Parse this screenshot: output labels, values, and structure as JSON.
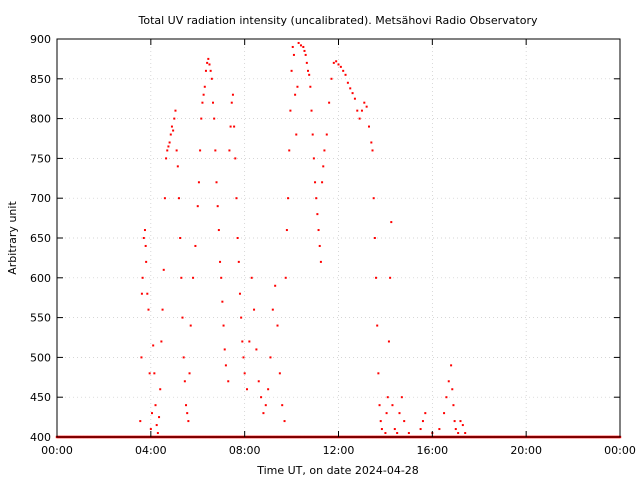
{
  "chart_data": {
    "type": "scatter",
    "title": "Total UV radiation intensity (uncalibrated). Metsähovi Radio Observatory",
    "xlabel": "Time UT, on date 2024-04-28",
    "ylabel": "Arbitrary unit",
    "xlim": [
      0,
      24
    ],
    "ylim": [
      400,
      900
    ],
    "grid": true,
    "marker_color": "#ff0000",
    "x_ticks": [
      {
        "value": 0,
        "label": "00:00"
      },
      {
        "value": 4,
        "label": "04:00"
      },
      {
        "value": 8,
        "label": "08:00"
      },
      {
        "value": 12,
        "label": "12:00"
      },
      {
        "value": 16,
        "label": "16:00"
      },
      {
        "value": 20,
        "label": "20:00"
      },
      {
        "value": 24,
        "label": "00:00"
      }
    ],
    "y_ticks": [
      400,
      450,
      500,
      550,
      600,
      650,
      700,
      750,
      800,
      850,
      900
    ],
    "series": [
      {
        "baseline": {
          "x_start": 0,
          "x_end": 24,
          "step": 0.05,
          "y": 400
        },
        "points": [
          [
            3.55,
            420
          ],
          [
            3.6,
            500
          ],
          [
            3.62,
            580
          ],
          [
            3.65,
            600
          ],
          [
            3.7,
            650
          ],
          [
            3.75,
            660
          ],
          [
            3.78,
            640
          ],
          [
            3.8,
            620
          ],
          [
            3.85,
            580
          ],
          [
            3.9,
            560
          ],
          [
            3.95,
            480
          ],
          [
            4.0,
            410
          ],
          [
            4.05,
            430
          ],
          [
            4.1,
            515
          ],
          [
            4.15,
            480
          ],
          [
            4.2,
            440
          ],
          [
            4.25,
            415
          ],
          [
            4.3,
            405
          ],
          [
            4.35,
            425
          ],
          [
            4.4,
            460
          ],
          [
            4.45,
            520
          ],
          [
            4.5,
            560
          ],
          [
            4.55,
            610
          ],
          [
            4.6,
            700
          ],
          [
            4.65,
            750
          ],
          [
            4.7,
            760
          ],
          [
            4.75,
            765
          ],
          [
            4.8,
            770
          ],
          [
            4.85,
            780
          ],
          [
            4.9,
            790
          ],
          [
            4.95,
            785
          ],
          [
            5.0,
            800
          ],
          [
            5.05,
            810
          ],
          [
            5.1,
            760
          ],
          [
            5.15,
            740
          ],
          [
            5.2,
            700
          ],
          [
            5.25,
            650
          ],
          [
            5.3,
            600
          ],
          [
            5.35,
            550
          ],
          [
            5.4,
            500
          ],
          [
            5.45,
            470
          ],
          [
            5.5,
            440
          ],
          [
            5.55,
            430
          ],
          [
            5.6,
            420
          ],
          [
            5.65,
            480
          ],
          [
            5.7,
            540
          ],
          [
            5.8,
            600
          ],
          [
            5.9,
            640
          ],
          [
            6.0,
            690
          ],
          [
            6.05,
            720
          ],
          [
            6.1,
            760
          ],
          [
            6.15,
            800
          ],
          [
            6.2,
            820
          ],
          [
            6.25,
            830
          ],
          [
            6.3,
            840
          ],
          [
            6.35,
            860
          ],
          [
            6.4,
            870
          ],
          [
            6.45,
            875
          ],
          [
            6.5,
            868
          ],
          [
            6.55,
            860
          ],
          [
            6.6,
            850
          ],
          [
            6.65,
            820
          ],
          [
            6.7,
            800
          ],
          [
            6.75,
            760
          ],
          [
            6.8,
            720
          ],
          [
            6.85,
            690
          ],
          [
            6.9,
            660
          ],
          [
            6.95,
            620
          ],
          [
            7.0,
            600
          ],
          [
            7.05,
            570
          ],
          [
            7.1,
            540
          ],
          [
            7.15,
            510
          ],
          [
            7.2,
            490
          ],
          [
            7.3,
            470
          ],
          [
            7.35,
            760
          ],
          [
            7.4,
            790
          ],
          [
            7.45,
            820
          ],
          [
            7.5,
            830
          ],
          [
            7.55,
            790
          ],
          [
            7.6,
            750
          ],
          [
            7.65,
            700
          ],
          [
            7.7,
            650
          ],
          [
            7.75,
            620
          ],
          [
            7.8,
            580
          ],
          [
            7.85,
            550
          ],
          [
            7.9,
            520
          ],
          [
            7.95,
            500
          ],
          [
            8.0,
            480
          ],
          [
            8.1,
            460
          ],
          [
            8.2,
            520
          ],
          [
            8.3,
            600
          ],
          [
            8.4,
            560
          ],
          [
            8.5,
            510
          ],
          [
            8.6,
            470
          ],
          [
            8.7,
            450
          ],
          [
            8.8,
            430
          ],
          [
            8.9,
            440
          ],
          [
            9.0,
            460
          ],
          [
            9.1,
            500
          ],
          [
            9.2,
            560
          ],
          [
            9.3,
            590
          ],
          [
            9.4,
            540
          ],
          [
            9.5,
            480
          ],
          [
            9.6,
            440
          ],
          [
            9.7,
            420
          ],
          [
            9.75,
            600
          ],
          [
            9.8,
            660
          ],
          [
            9.85,
            700
          ],
          [
            9.9,
            760
          ],
          [
            9.95,
            810
          ],
          [
            10.0,
            860
          ],
          [
            10.05,
            890
          ],
          [
            10.1,
            880
          ],
          [
            10.15,
            830
          ],
          [
            10.2,
            780
          ],
          [
            10.25,
            840
          ],
          [
            10.3,
            895
          ],
          [
            10.4,
            892
          ],
          [
            10.5,
            890
          ],
          [
            10.55,
            885
          ],
          [
            10.6,
            880
          ],
          [
            10.65,
            870
          ],
          [
            10.7,
            860
          ],
          [
            10.75,
            855
          ],
          [
            10.8,
            840
          ],
          [
            10.85,
            810
          ],
          [
            10.9,
            780
          ],
          [
            10.95,
            750
          ],
          [
            11.0,
            720
          ],
          [
            11.05,
            700
          ],
          [
            11.1,
            680
          ],
          [
            11.15,
            660
          ],
          [
            11.2,
            640
          ],
          [
            11.25,
            620
          ],
          [
            11.3,
            720
          ],
          [
            11.35,
            740
          ],
          [
            11.4,
            760
          ],
          [
            11.5,
            780
          ],
          [
            11.6,
            820
          ],
          [
            11.7,
            850
          ],
          [
            11.8,
            870
          ],
          [
            11.9,
            872
          ],
          [
            12.0,
            868
          ],
          [
            12.1,
            865
          ],
          [
            12.2,
            860
          ],
          [
            12.3,
            855
          ],
          [
            12.4,
            845
          ],
          [
            12.5,
            838
          ],
          [
            12.6,
            832
          ],
          [
            12.7,
            825
          ],
          [
            12.8,
            810
          ],
          [
            12.9,
            800
          ],
          [
            13.0,
            810
          ],
          [
            13.1,
            820
          ],
          [
            13.2,
            815
          ],
          [
            13.3,
            790
          ],
          [
            13.4,
            770
          ],
          [
            13.45,
            760
          ],
          [
            13.5,
            700
          ],
          [
            13.55,
            650
          ],
          [
            13.6,
            600
          ],
          [
            13.65,
            540
          ],
          [
            13.7,
            480
          ],
          [
            13.75,
            440
          ],
          [
            13.8,
            420
          ],
          [
            13.85,
            410
          ],
          [
            14.0,
            405
          ],
          [
            14.05,
            430
          ],
          [
            14.1,
            450
          ],
          [
            14.15,
            520
          ],
          [
            14.2,
            600
          ],
          [
            14.25,
            670
          ],
          [
            14.3,
            440
          ],
          [
            14.4,
            410
          ],
          [
            14.5,
            405
          ],
          [
            14.6,
            430
          ],
          [
            14.7,
            450
          ],
          [
            14.8,
            420
          ],
          [
            15.0,
            405
          ],
          [
            15.5,
            410
          ],
          [
            15.6,
            420
          ],
          [
            15.7,
            430
          ],
          [
            16.0,
            405
          ],
          [
            16.3,
            410
          ],
          [
            16.5,
            430
          ],
          [
            16.6,
            450
          ],
          [
            16.7,
            470
          ],
          [
            16.8,
            490
          ],
          [
            16.85,
            460
          ],
          [
            16.9,
            440
          ],
          [
            16.95,
            420
          ],
          [
            17.0,
            410
          ],
          [
            17.1,
            405
          ],
          [
            17.2,
            420
          ],
          [
            17.3,
            415
          ],
          [
            17.4,
            405
          ]
        ]
      }
    ]
  }
}
